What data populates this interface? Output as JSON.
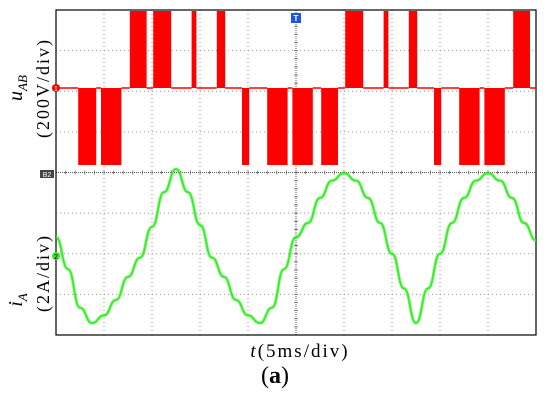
{
  "chart_data": [
    {
      "type": "line",
      "signal": "line-voltage",
      "ylabel_main": "u",
      "ylabel_sub": "AB",
      "ylabel_scale": "(200V/div)",
      "color": "#ff0000",
      "channel_marker": "1",
      "trigger_marker": "T",
      "ground_marker": "B2",
      "levels_div": [
        -1,
        0,
        1
      ],
      "x_div": [
        0,
        1.85,
        1.85,
        3.35,
        3.35,
        3.75,
        3.75,
        5.45,
        5.45,
        6.15,
        6.15,
        7.55,
        7.55,
        8.1,
        8.1,
        9.6,
        9.6,
        11.3,
        11.3,
        11.7,
        11.7,
        13.4,
        13.4,
        14.1,
        14.1,
        15.5,
        15.5,
        16.1,
        16.1,
        17.6,
        17.6,
        19.3,
        19.3,
        19.7,
        19.7,
        21.4,
        21.4,
        22.1,
        22.1,
        23.5,
        23.5,
        24.1,
        24.1,
        25.6,
        25.6,
        27.3,
        27.3,
        27.7,
        27.7,
        29.4,
        29.4,
        30.1,
        30.1,
        31.5,
        31.5,
        32.1,
        32.1,
        33.6,
        33.6,
        35.3,
        35.3,
        35.7,
        35.7,
        37.4,
        37.4,
        38.1,
        38.1,
        39.5,
        39.5,
        40
      ],
      "u_div": [
        0,
        0,
        -1,
        -1,
        0,
        0,
        -1,
        -1,
        0,
        0,
        1,
        1,
        0,
        0,
        1,
        1,
        0,
        0,
        1,
        1,
        0,
        0,
        1,
        1,
        0,
        0,
        -1,
        -1,
        0,
        0,
        -1,
        -1,
        0,
        0,
        -1,
        -1,
        0,
        0,
        -1,
        -1,
        0,
        0,
        1,
        1,
        0,
        0,
        1,
        1,
        0,
        0,
        1,
        1,
        0,
        0,
        -1,
        -1,
        0,
        0,
        -1,
        -1,
        0,
        0,
        -1,
        -1,
        0,
        0,
        1,
        1,
        0,
        0
      ],
      "ylim_div": [
        -1.6,
        1.6
      ]
    },
    {
      "type": "line",
      "signal": "phase-current",
      "ylabel_main": "i",
      "ylabel_sub": "A",
      "ylabel_scale": "(2A/div)",
      "color": "#33ee22",
      "channel_marker": "2",
      "x_div": [
        0,
        1,
        2,
        3,
        4,
        5,
        6,
        7,
        8,
        9,
        10,
        11,
        12,
        13,
        14,
        15,
        16,
        17,
        18,
        19,
        20,
        21,
        22,
        23,
        24,
        25,
        26,
        27,
        28,
        29,
        30,
        31,
        32,
        33,
        34,
        35,
        36,
        37,
        38,
        39,
        40
      ],
      "i_div": [
        0.28,
        -0.55,
        -1.55,
        -1.95,
        -1.75,
        -1.35,
        -0.75,
        -0.25,
        0.55,
        1.45,
        2.05,
        1.45,
        0.6,
        -0.25,
        -0.75,
        -1.35,
        -1.75,
        -1.95,
        -1.55,
        -0.55,
        0.28,
        0.65,
        1.3,
        1.75,
        1.95,
        1.75,
        1.3,
        0.65,
        -0.15,
        -1.05,
        -1.95,
        -1.05,
        -0.15,
        0.65,
        1.3,
        1.75,
        1.95,
        1.75,
        1.3,
        0.65,
        0.2
      ],
      "ylim_div": [
        -2.2,
        2.2
      ]
    }
  ],
  "x_axis": {
    "label_main": "t",
    "label_scale": "(5ms/div)"
  },
  "grid": {
    "major_cols": 10,
    "major_rows": 8,
    "style": "dotted"
  },
  "caption": {
    "open": "(",
    "letter": "a",
    "close": ")"
  }
}
